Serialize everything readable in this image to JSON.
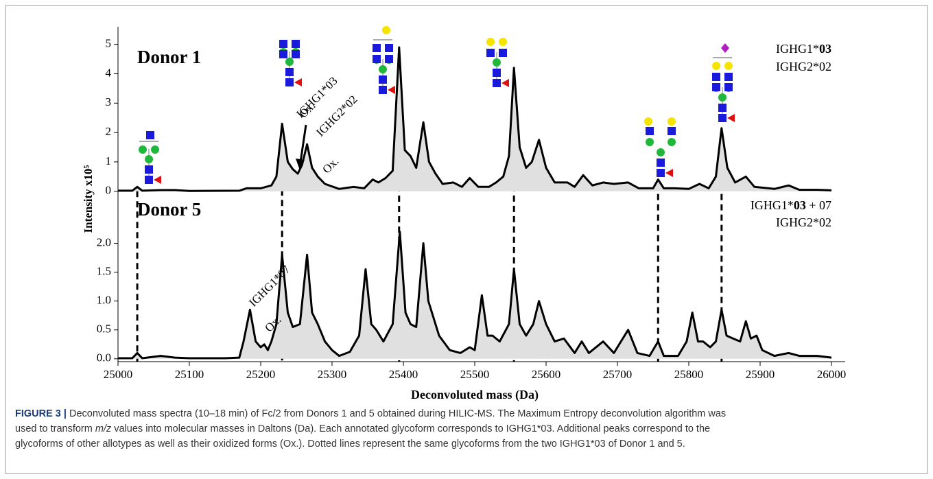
{
  "chart_data": [
    {
      "type": "area",
      "panel_label": "Donor 1",
      "allotype_lines": [
        [
          {
            "text": "IGHG1*"
          },
          {
            "text": "03",
            "bold": true
          }
        ],
        [
          {
            "text": "IGHG2*02"
          }
        ]
      ],
      "annotations": [
        "IGHG1*03",
        "IGHG2*02",
        "Ox.",
        "Ox."
      ],
      "ylabel": "Intensity x10⁵",
      "color": "#000000",
      "fill": "#e0e0e0",
      "ylim": [
        -0.1,
        5.6
      ],
      "yticks": [
        0,
        1,
        2,
        3,
        4,
        5
      ],
      "x": [
        25000,
        25020,
        25027,
        25034,
        25060,
        25080,
        25100,
        25170,
        25180,
        25200,
        25215,
        25222,
        25230,
        25238,
        25245,
        25252,
        25258,
        25265,
        25272,
        25280,
        25290,
        25310,
        25330,
        25345,
        25357,
        25365,
        25375,
        25385,
        25394,
        25402,
        25410,
        25418,
        25428,
        25436,
        25445,
        25455,
        25470,
        25482,
        25493,
        25505,
        25520,
        25530,
        25540,
        25548,
        25555,
        25563,
        25572,
        25580,
        25590,
        25600,
        25612,
        25630,
        25640,
        25652,
        25665,
        25680,
        25695,
        25715,
        25730,
        25750,
        25757,
        25765,
        25780,
        25800,
        25815,
        25828,
        25838,
        25846,
        25854,
        25865,
        25880,
        25892,
        25920,
        25940,
        25955,
        25980,
        26000
      ],
      "values": [
        0.02,
        0.02,
        0.15,
        0.02,
        0.04,
        0.04,
        0.01,
        0.02,
        0.1,
        0.1,
        0.2,
        0.5,
        2.3,
        1.0,
        0.75,
        0.6,
        0.9,
        1.6,
        0.8,
        0.5,
        0.25,
        0.08,
        0.15,
        0.1,
        0.4,
        0.3,
        0.45,
        0.7,
        4.9,
        1.4,
        1.2,
        0.8,
        2.35,
        1.0,
        0.6,
        0.25,
        0.3,
        0.15,
        0.45,
        0.15,
        0.15,
        0.3,
        0.5,
        1.2,
        4.2,
        1.5,
        0.8,
        1.0,
        1.75,
        0.8,
        0.3,
        0.3,
        0.15,
        0.55,
        0.2,
        0.3,
        0.25,
        0.3,
        0.1,
        0.1,
        0.4,
        0.1,
        0.1,
        0.08,
        0.25,
        0.1,
        0.5,
        2.15,
        0.8,
        0.3,
        0.5,
        0.15,
        0.08,
        0.2,
        0.05,
        0.05,
        0.03
      ]
    },
    {
      "type": "area",
      "panel_label": "Donor 5",
      "allotype_lines": [
        [
          {
            "text": "IGHG1*"
          },
          {
            "text": "03",
            "bold": true
          },
          {
            "text": " + 07"
          }
        ],
        [
          {
            "text": "IGHG2*02"
          }
        ]
      ],
      "annotations": [
        "IGHG1*07",
        "Ox."
      ],
      "xlabel": "Deconvoluted mass (Da)",
      "color": "#000000",
      "fill": "#e0e0e0",
      "xlim": [
        25000,
        26000
      ],
      "xticks": [
        25000,
        25100,
        25200,
        25300,
        25400,
        25500,
        25600,
        25700,
        25800,
        25900,
        26000
      ],
      "ylim": [
        -0.05,
        2.85
      ],
      "yticks": [
        {
          "value": 0,
          "label": "0.0"
        },
        0.5,
        {
          "value": 1,
          "label": "1.0"
        },
        1.5,
        {
          "value": 2,
          "label": "2.0"
        }
      ],
      "x": [
        25000,
        25020,
        25027,
        25034,
        25060,
        25080,
        25100,
        25150,
        25170,
        25176,
        25185,
        25193,
        25200,
        25205,
        25210,
        25215,
        25222,
        25230,
        25238,
        25245,
        25255,
        25265,
        25272,
        25280,
        25290,
        25300,
        25310,
        25325,
        25338,
        25347,
        25355,
        25362,
        25372,
        25385,
        25395,
        25403,
        25410,
        25418,
        25428,
        25435,
        25440,
        25450,
        25465,
        25480,
        25493,
        25500,
        25510,
        25518,
        25525,
        25535,
        25548,
        25555,
        25563,
        25572,
        25582,
        25590,
        25600,
        25612,
        25625,
        25640,
        25650,
        25660,
        25680,
        25695,
        25715,
        25728,
        25745,
        25757,
        25765,
        25785,
        25797,
        25805,
        25813,
        25820,
        25830,
        25838,
        25846,
        25853,
        25862,
        25872,
        25880,
        25887,
        25895,
        25903,
        25920,
        25940,
        25955,
        25980,
        26000
      ],
      "values": [
        0.01,
        0.01,
        0.1,
        0.01,
        0.05,
        0.02,
        0.01,
        0.01,
        0.02,
        0.3,
        0.85,
        0.3,
        0.2,
        0.25,
        0.15,
        0.3,
        0.6,
        1.8,
        0.8,
        0.55,
        0.6,
        1.8,
        0.8,
        0.6,
        0.3,
        0.15,
        0.05,
        0.12,
        0.4,
        1.55,
        0.6,
        0.5,
        0.3,
        0.6,
        2.2,
        0.8,
        0.6,
        0.55,
        2.0,
        1.0,
        0.8,
        0.4,
        0.15,
        0.1,
        0.2,
        0.15,
        1.1,
        0.4,
        0.4,
        0.3,
        0.6,
        1.55,
        0.6,
        0.4,
        0.6,
        1.0,
        0.6,
        0.3,
        0.35,
        0.1,
        0.3,
        0.1,
        0.3,
        0.1,
        0.5,
        0.1,
        0.05,
        0.3,
        0.05,
        0.05,
        0.3,
        0.8,
        0.3,
        0.3,
        0.2,
        0.3,
        0.85,
        0.4,
        0.35,
        0.3,
        0.65,
        0.35,
        0.4,
        0.15,
        0.05,
        0.1,
        0.05,
        0.05,
        0.02
      ]
    }
  ],
  "caption": {
    "label": "FIGURE 3 |",
    "lines": [
      [
        " Deconvoluted mass spectra (10–18 min) of Fc/2 from Donors 1 and 5 obtained during HILIC-MS. The Maximum Entropy deconvolution algorithm was"
      ],
      [
        "used to transform ",
        "m/z",
        " values into molecular masses in Daltons (Da). Each annotated glycoform corresponds to IGHG1*03. Additional peaks correspond to the"
      ],
      [
        "glycoforms of other allotypes as well as their oxidized forms (Ox.). Dotted lines represent the same glycoforms from the two IGHG1*03 of Donor 1 and 5."
      ]
    ]
  }
}
